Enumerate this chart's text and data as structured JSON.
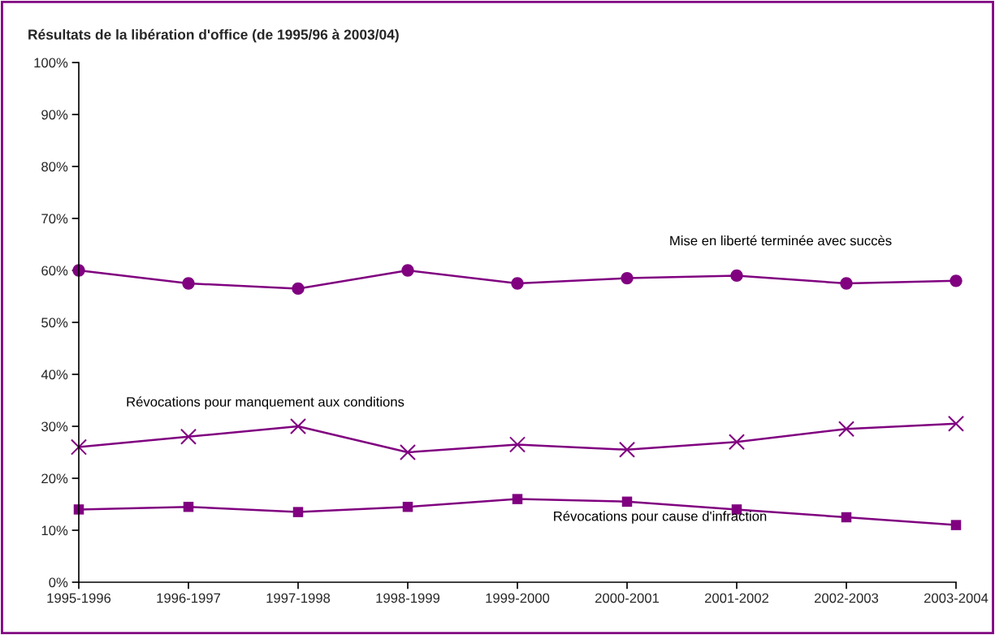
{
  "chart_data": {
    "type": "line",
    "title": "Résultats de la libération d'office (de 1995/96 à 2003/04)",
    "categories": [
      "1995-1996",
      "1996-1997",
      "1997-1998",
      "1998-1999",
      "1999-2000",
      "2000-2001",
      "2001-2002",
      "2002-2003",
      "2003-2004"
    ],
    "series": [
      {
        "name": "Mise en liberté terminée avec succès",
        "color": "#800080",
        "marker": "circle",
        "values": [
          60,
          57.5,
          56.5,
          60,
          57.5,
          58.5,
          59,
          57.5,
          58
        ]
      },
      {
        "name": "Révocations pour manquement aux conditions",
        "color": "#800080",
        "marker": "cross",
        "values": [
          26,
          28,
          30,
          25,
          26.5,
          25.5,
          27,
          29.5,
          30.5
        ]
      },
      {
        "name": "Révocations pour cause d'infraction",
        "color": "#800080",
        "marker": "square",
        "values": [
          14,
          14.5,
          13.5,
          14.5,
          16,
          15.5,
          14,
          12.5,
          11
        ]
      }
    ],
    "ylim": [
      0,
      100
    ],
    "yticks": [
      {
        "value": 0,
        "label": "0%"
      },
      {
        "value": 10,
        "label": "10%"
      },
      {
        "value": 20,
        "label": "20%"
      },
      {
        "value": 30,
        "label": "30%"
      },
      {
        "value": 40,
        "label": "40%"
      },
      {
        "value": 50,
        "label": "50%"
      },
      {
        "value": 60,
        "label": "60%"
      },
      {
        "value": 70,
        "label": "70%"
      },
      {
        "value": 80,
        "label": "80%"
      },
      {
        "value": 90,
        "label": "90%"
      },
      {
        "value": 100,
        "label": "100%"
      }
    ],
    "grid": false,
    "legend": false,
    "line_style": "solid"
  }
}
